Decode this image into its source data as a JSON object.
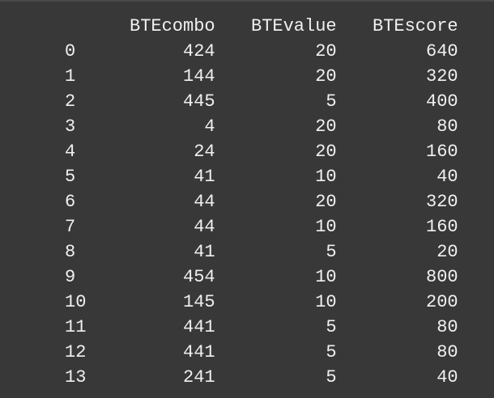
{
  "table": {
    "columns": [
      "BTEcombo",
      "BTEvalue",
      "BTEscore"
    ],
    "rows": [
      {
        "index": "0",
        "values": [
          "424",
          "20",
          "640"
        ]
      },
      {
        "index": "1",
        "values": [
          "144",
          "20",
          "320"
        ]
      },
      {
        "index": "2",
        "values": [
          "445",
          "5",
          "400"
        ]
      },
      {
        "index": "3",
        "values": [
          "4",
          "20",
          "80"
        ]
      },
      {
        "index": "4",
        "values": [
          "24",
          "20",
          "160"
        ]
      },
      {
        "index": "5",
        "values": [
          "41",
          "10",
          "40"
        ]
      },
      {
        "index": "6",
        "values": [
          "44",
          "20",
          "320"
        ]
      },
      {
        "index": "7",
        "values": [
          "44",
          "10",
          "160"
        ]
      },
      {
        "index": "8",
        "values": [
          "41",
          "5",
          "20"
        ]
      },
      {
        "index": "9",
        "values": [
          "454",
          "10",
          "800"
        ]
      },
      {
        "index": "10",
        "values": [
          "145",
          "10",
          "200"
        ]
      },
      {
        "index": "11",
        "values": [
          "441",
          "5",
          "80"
        ]
      },
      {
        "index": "12",
        "values": [
          "441",
          "5",
          "80"
        ]
      },
      {
        "index": "13",
        "values": [
          "241",
          "5",
          "40"
        ]
      }
    ]
  }
}
